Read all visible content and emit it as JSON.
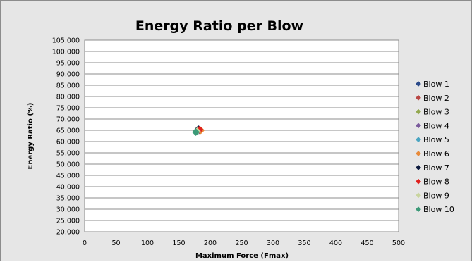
{
  "chart_data": {
    "type": "scatter",
    "title": "Energy Ratio per Blow",
    "xlabel": "Maximum Force  (Fmax)",
    "ylabel": "Energy Ratio  (%)",
    "xlim": [
      0,
      500
    ],
    "ylim": [
      20,
      105
    ],
    "x_ticks": [
      0,
      50,
      100,
      150,
      200,
      250,
      300,
      350,
      400,
      450,
      500
    ],
    "y_ticks": [
      20,
      25,
      30,
      35,
      40,
      45,
      50,
      55,
      60,
      65,
      70,
      75,
      80,
      85,
      90,
      95,
      100,
      105
    ],
    "y_tick_labels": [
      "20.000",
      "25.000",
      "30.000",
      "35.000",
      "40.000",
      "45.000",
      "50.000",
      "55.000",
      "60.000",
      "65.000",
      "70.000",
      "75.000",
      "80.000",
      "85.000",
      "90.000",
      "95.000",
      "100.000",
      "105.000"
    ],
    "grid": "horizontal",
    "legend_position": "right",
    "series": [
      {
        "name": "Blow 1",
        "color": "#2b4a8a",
        "x": [
          182
        ],
        "y": [
          65.3
        ]
      },
      {
        "name": "Blow 2",
        "color": "#b94745",
        "x": [
          183
        ],
        "y": [
          65.0
        ]
      },
      {
        "name": "Blow 3",
        "color": "#93a84f",
        "x": [
          181
        ],
        "y": [
          64.9
        ]
      },
      {
        "name": "Blow 4",
        "color": "#7a5a9c",
        "x": [
          182
        ],
        "y": [
          65.1
        ]
      },
      {
        "name": "Blow 5",
        "color": "#4aa5c2",
        "x": [
          180
        ],
        "y": [
          64.7
        ]
      },
      {
        "name": "Blow 6",
        "color": "#e88a3a",
        "x": [
          185
        ],
        "y": [
          65.0
        ]
      },
      {
        "name": "Blow 7",
        "color": "#0d1b3f",
        "x": [
          181
        ],
        "y": [
          65.5
        ]
      },
      {
        "name": "Blow 8",
        "color": "#e0201d",
        "x": [
          183
        ],
        "y": [
          65.3
        ]
      },
      {
        "name": "Blow 9",
        "color": "#c9d59e",
        "x": [
          179
        ],
        "y": [
          64.6
        ]
      },
      {
        "name": "Blow 10",
        "color": "#3c9a78",
        "x": [
          177
        ],
        "y": [
          64.2
        ]
      }
    ]
  }
}
